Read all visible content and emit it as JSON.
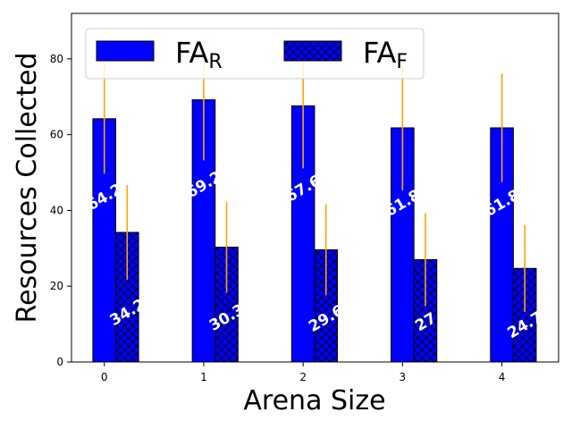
{
  "chart_data": {
    "type": "bar",
    "xlabel": "Arena Size",
    "ylabel": "Resources Collected",
    "categories": [
      "0",
      "1",
      "2",
      "3",
      "4"
    ],
    "ylim": [
      0,
      92
    ],
    "yticks": [
      "0",
      "20",
      "40",
      "60",
      "80"
    ],
    "ytick_values": [
      0,
      20,
      40,
      60,
      80
    ],
    "legend_position": "top",
    "series": [
      {
        "name_main": "FA",
        "name_sub": "R",
        "values": [
          64.2,
          69.2,
          67.6,
          61.8,
          61.8
        ],
        "value_labels": [
          "64.2",
          "69.2",
          "67.6",
          "61.8",
          "61.8"
        ],
        "error": [
          14.5,
          16.0,
          16.5,
          16.5,
          14.3
        ],
        "color": "#0000ff",
        "hatch": "none"
      },
      {
        "name_main": "FA",
        "name_sub": "F",
        "values": [
          34.2,
          30.3,
          29.6,
          27.0,
          24.7
        ],
        "value_labels": [
          "34.2",
          "30.3",
          "29.6",
          "27",
          "24.7"
        ],
        "error": [
          12.5,
          12.0,
          12.0,
          12.3,
          11.5
        ],
        "color": "#0000ff",
        "hatch": "crosshatch"
      }
    ],
    "error_color": "#ffa500",
    "grid": false
  }
}
